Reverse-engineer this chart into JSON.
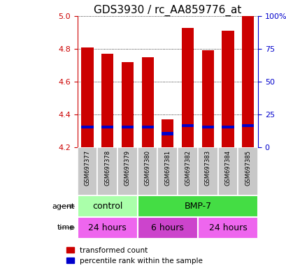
{
  "title": "GDS3930 / rc_AA859776_at",
  "samples": [
    "GSM697377",
    "GSM697378",
    "GSM697379",
    "GSM697380",
    "GSM697381",
    "GSM697382",
    "GSM697383",
    "GSM697384",
    "GSM697385"
  ],
  "red_values": [
    4.81,
    4.77,
    4.72,
    4.75,
    4.37,
    4.93,
    4.79,
    4.91,
    5.0
  ],
  "blue_values": [
    4.315,
    4.315,
    4.315,
    4.315,
    4.275,
    4.325,
    4.315,
    4.315,
    4.325
  ],
  "blue_heights": [
    0.018,
    0.018,
    0.018,
    0.018,
    0.018,
    0.018,
    0.018,
    0.018,
    0.018
  ],
  "ylim": [
    4.2,
    5.0
  ],
  "yticks": [
    4.2,
    4.4,
    4.6,
    4.8,
    5.0
  ],
  "y2ticks": [
    0,
    25,
    50,
    75,
    100
  ],
  "y2labels": [
    "0",
    "25",
    "50",
    "75",
    "100%"
  ],
  "agent_labels": [
    {
      "text": "control",
      "start": 0,
      "end": 3,
      "color": "#AAFFAA"
    },
    {
      "text": "BMP-7",
      "start": 3,
      "end": 9,
      "color": "#44DD44"
    }
  ],
  "time_labels": [
    {
      "text": "24 hours",
      "start": 0,
      "end": 3,
      "color": "#EE66EE"
    },
    {
      "text": "6 hours",
      "start": 3,
      "end": 6,
      "color": "#CC44CC"
    },
    {
      "text": "24 hours",
      "start": 6,
      "end": 9,
      "color": "#EE66EE"
    }
  ],
  "bar_color": "#CC0000",
  "blue_color": "#0000CC",
  "title_fontsize": 11,
  "axis_label_color_left": "#CC0000",
  "axis_label_color_right": "#0000CC",
  "background_color": "#FFFFFF",
  "plot_bg_color": "#FFFFFF",
  "bar_width": 0.6,
  "sample_bg": "#C8C8C8"
}
